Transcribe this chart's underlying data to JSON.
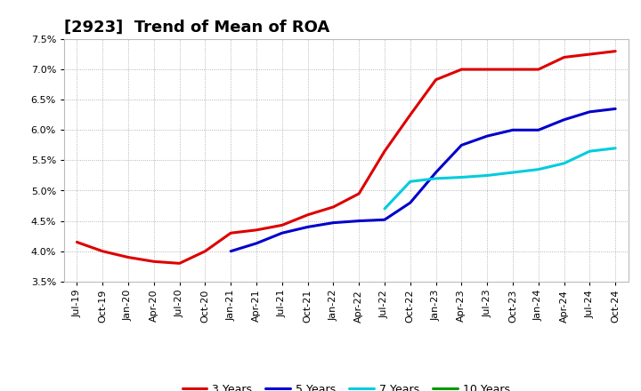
{
  "title": "[2923]  Trend of Mean of ROA",
  "ylim": [
    0.035,
    0.075
  ],
  "yticks": [
    0.035,
    0.04,
    0.045,
    0.05,
    0.055,
    0.06,
    0.065,
    0.07,
    0.075
  ],
  "background_color": "#ffffff",
  "plot_bg_color": "#ffffff",
  "grid_color": "#999999",
  "xtick_labels": [
    "Jul-19",
    "Oct-19",
    "Jan-20",
    "Apr-20",
    "Jul-20",
    "Oct-20",
    "Jan-21",
    "Apr-21",
    "Jul-21",
    "Oct-21",
    "Jan-22",
    "Apr-22",
    "Jul-22",
    "Oct-22",
    "Jan-23",
    "Apr-23",
    "Jul-23",
    "Oct-23",
    "Jan-24",
    "Apr-24",
    "Jul-24",
    "Oct-24"
  ],
  "series_3yr": {
    "color": "#dd0000",
    "label": "3 Years",
    "x_idx": [
      0,
      1,
      2,
      3,
      4,
      5,
      6,
      7,
      8,
      9,
      10,
      11,
      12,
      13,
      14,
      15,
      16,
      17,
      18,
      19,
      20,
      21
    ],
    "values": [
      0.0415,
      0.04,
      0.039,
      0.0383,
      0.038,
      0.04,
      0.043,
      0.0435,
      0.0443,
      0.046,
      0.0473,
      0.0495,
      0.0565,
      0.0625,
      0.0683,
      0.07,
      0.07,
      0.07,
      0.07,
      0.072,
      0.0725,
      0.073
    ]
  },
  "series_5yr": {
    "color": "#0000cc",
    "label": "5 Years",
    "x_idx": [
      6,
      7,
      8,
      9,
      10,
      11,
      12,
      13,
      14,
      15,
      16,
      17,
      18,
      19,
      20,
      21
    ],
    "values": [
      0.04,
      0.0413,
      0.043,
      0.044,
      0.0447,
      0.045,
      0.0452,
      0.048,
      0.053,
      0.0575,
      0.059,
      0.06,
      0.06,
      0.0617,
      0.063,
      0.0635
    ]
  },
  "series_7yr": {
    "color": "#00ccdd",
    "label": "7 Years",
    "x_idx": [
      12,
      13,
      14,
      15,
      16,
      17,
      18,
      19,
      20,
      21
    ],
    "values": [
      0.047,
      0.0515,
      0.052,
      0.0522,
      0.0525,
      0.053,
      0.0535,
      0.0545,
      0.0565,
      0.057
    ]
  },
  "series_10yr": {
    "color": "#009900",
    "label": "10 Years",
    "x_idx": [],
    "values": []
  },
  "title_fontsize": 13,
  "tick_fontsize": 8,
  "legend_fontsize": 9,
  "linewidth": 2.2
}
